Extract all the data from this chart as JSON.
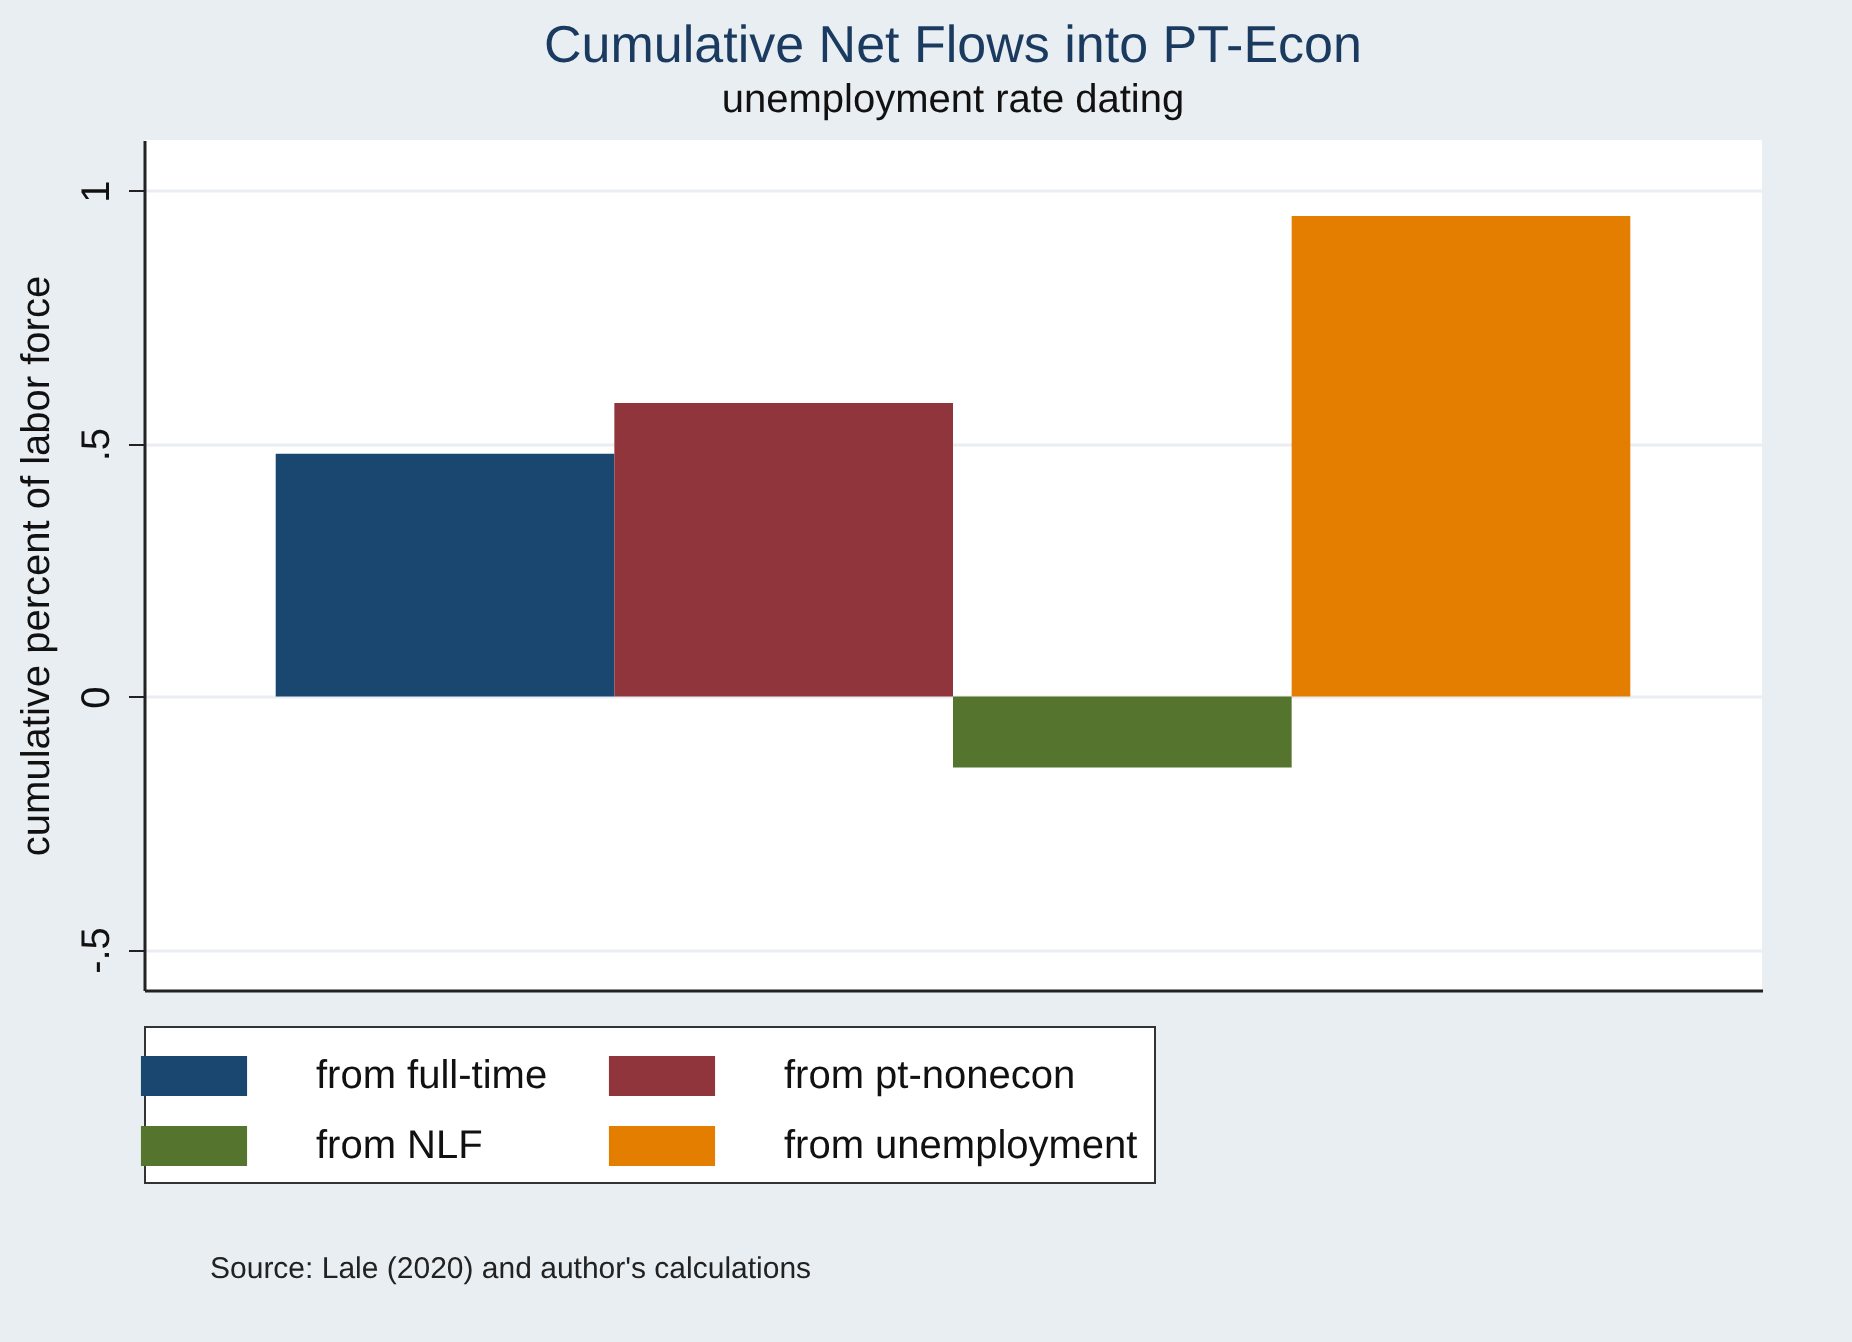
{
  "chart_data": {
    "type": "bar",
    "title": "Cumulative Net Flows into PT-Econ",
    "subtitle": "unemployment rate dating",
    "ylabel": "cumulative percent of labor force",
    "annotations": [
      "Source: Lale (2020) and author's calculations"
    ],
    "categories": [
      null
    ],
    "series": [
      {
        "name": "from full-time",
        "color": "#1a476f",
        "values": [
          0.48
        ]
      },
      {
        "name": "from pt-nonecon",
        "color": "#90353b",
        "values": [
          0.58
        ]
      },
      {
        "name": "from NLF",
        "color": "#55752f",
        "values": [
          -0.14
        ]
      },
      {
        "name": "from unemployment",
        "color": "#e37e00",
        "values": [
          0.95
        ]
      }
    ],
    "ylim": [
      -0.58,
      1.1
    ],
    "yticks": [
      {
        "value": -0.5,
        "label": "-.5"
      },
      0,
      {
        "value": 0.5,
        "label": ".5"
      },
      1
    ],
    "grid": "y",
    "legend": "bottom",
    "tick_labels": "y"
  }
}
